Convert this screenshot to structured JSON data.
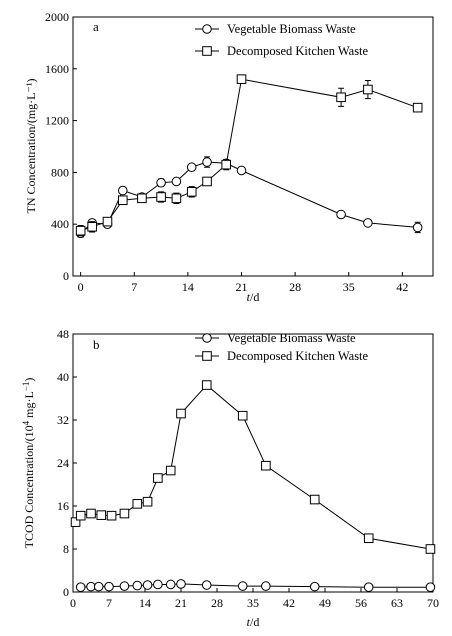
{
  "chart_data": [
    {
      "id": "a",
      "type": "line",
      "panel_label": "a",
      "xlabel_italic": "t",
      "xlabel_unit": "/d",
      "ylabel": "TN Concentration/(mg·L⁻¹)",
      "xlim": [
        -1,
        46
      ],
      "ylim": [
        0,
        2000
      ],
      "x_ticks": [
        0,
        7,
        14,
        21,
        28,
        35,
        42
      ],
      "y_ticks": [
        0,
        400,
        800,
        1200,
        1600,
        2000
      ],
      "legend_position": "top-right",
      "series": [
        {
          "name": "Vegetable Biomass Waste",
          "marker": "circle",
          "x": [
            0,
            1.5,
            3.5,
            5.5,
            8,
            10.5,
            12.5,
            14.5,
            16.5,
            19,
            21,
            34,
            37.5,
            44
          ],
          "y": [
            330,
            410,
            400,
            660,
            610,
            720,
            730,
            840,
            880,
            870,
            815,
            475,
            410,
            375
          ],
          "err": [
            30,
            20,
            15,
            25,
            25,
            30,
            15,
            15,
            40,
            20,
            20,
            15,
            15,
            40
          ]
        },
        {
          "name": "Decomposed Kitchen Waste",
          "marker": "square",
          "x": [
            0,
            1.5,
            3.5,
            5.5,
            8,
            10.5,
            12.5,
            14.5,
            16.5,
            19,
            21,
            34,
            37.5,
            44
          ],
          "y": [
            350,
            380,
            420,
            585,
            600,
            610,
            600,
            650,
            730,
            860,
            1520,
            1380,
            1440,
            1300
          ],
          "err": [
            40,
            40,
            30,
            30,
            25,
            40,
            40,
            40,
            30,
            40,
            20,
            70,
            70,
            20
          ]
        }
      ]
    },
    {
      "id": "b",
      "type": "line",
      "panel_label": "b",
      "xlabel_italic": "t",
      "xlabel_unit": "/d",
      "ylabel": "TCOD Concentration/(10⁴ mg·L⁻¹)",
      "xlim": [
        0,
        70
      ],
      "ylim": [
        0,
        48
      ],
      "x_ticks": [
        0,
        7,
        14,
        21,
        28,
        35,
        42,
        49,
        56,
        63,
        70
      ],
      "y_ticks": [
        0,
        8,
        16,
        24,
        32,
        40,
        48
      ],
      "legend_position": "top-right",
      "series": [
        {
          "name": "Vegetable Biomass Waste",
          "marker": "circle",
          "x": [
            1.5,
            3.5,
            5,
            7,
            10,
            12.5,
            14.5,
            16.5,
            19,
            21,
            26,
            33,
            37.5,
            47,
            57.5,
            69.5
          ],
          "y": [
            0.9,
            1.0,
            1.0,
            1.0,
            1.1,
            1.2,
            1.3,
            1.4,
            1.4,
            1.5,
            1.3,
            1.1,
            1.1,
            1.0,
            0.9,
            0.9
          ],
          "err": [
            0.2,
            0.2,
            0.2,
            0.2,
            0.2,
            0.2,
            0.2,
            0.2,
            0.2,
            0.2,
            0.2,
            0.2,
            0.2,
            0.2,
            0.2,
            0.2
          ]
        },
        {
          "name": "Decomposed Kitchen Waste",
          "marker": "square",
          "x": [
            0.5,
            1.5,
            3.5,
            5.5,
            7.5,
            10,
            12.5,
            14.5,
            16.5,
            19,
            21,
            26,
            33,
            37.5,
            47,
            57.5,
            69.5
          ],
          "y": [
            13.0,
            14.2,
            14.6,
            14.3,
            14.2,
            14.6,
            16.4,
            16.8,
            21.2,
            22.6,
            33.2,
            38.5,
            32.8,
            23.5,
            17.2,
            10.0,
            8.0
          ],
          "err": [
            0.6,
            0.6,
            0.6,
            0.6,
            0.6,
            0.6,
            0.6,
            0.6,
            0.6,
            0.6,
            0.6,
            0.6,
            0.6,
            0.6,
            0.6,
            0.6,
            0.6
          ]
        }
      ]
    }
  ]
}
